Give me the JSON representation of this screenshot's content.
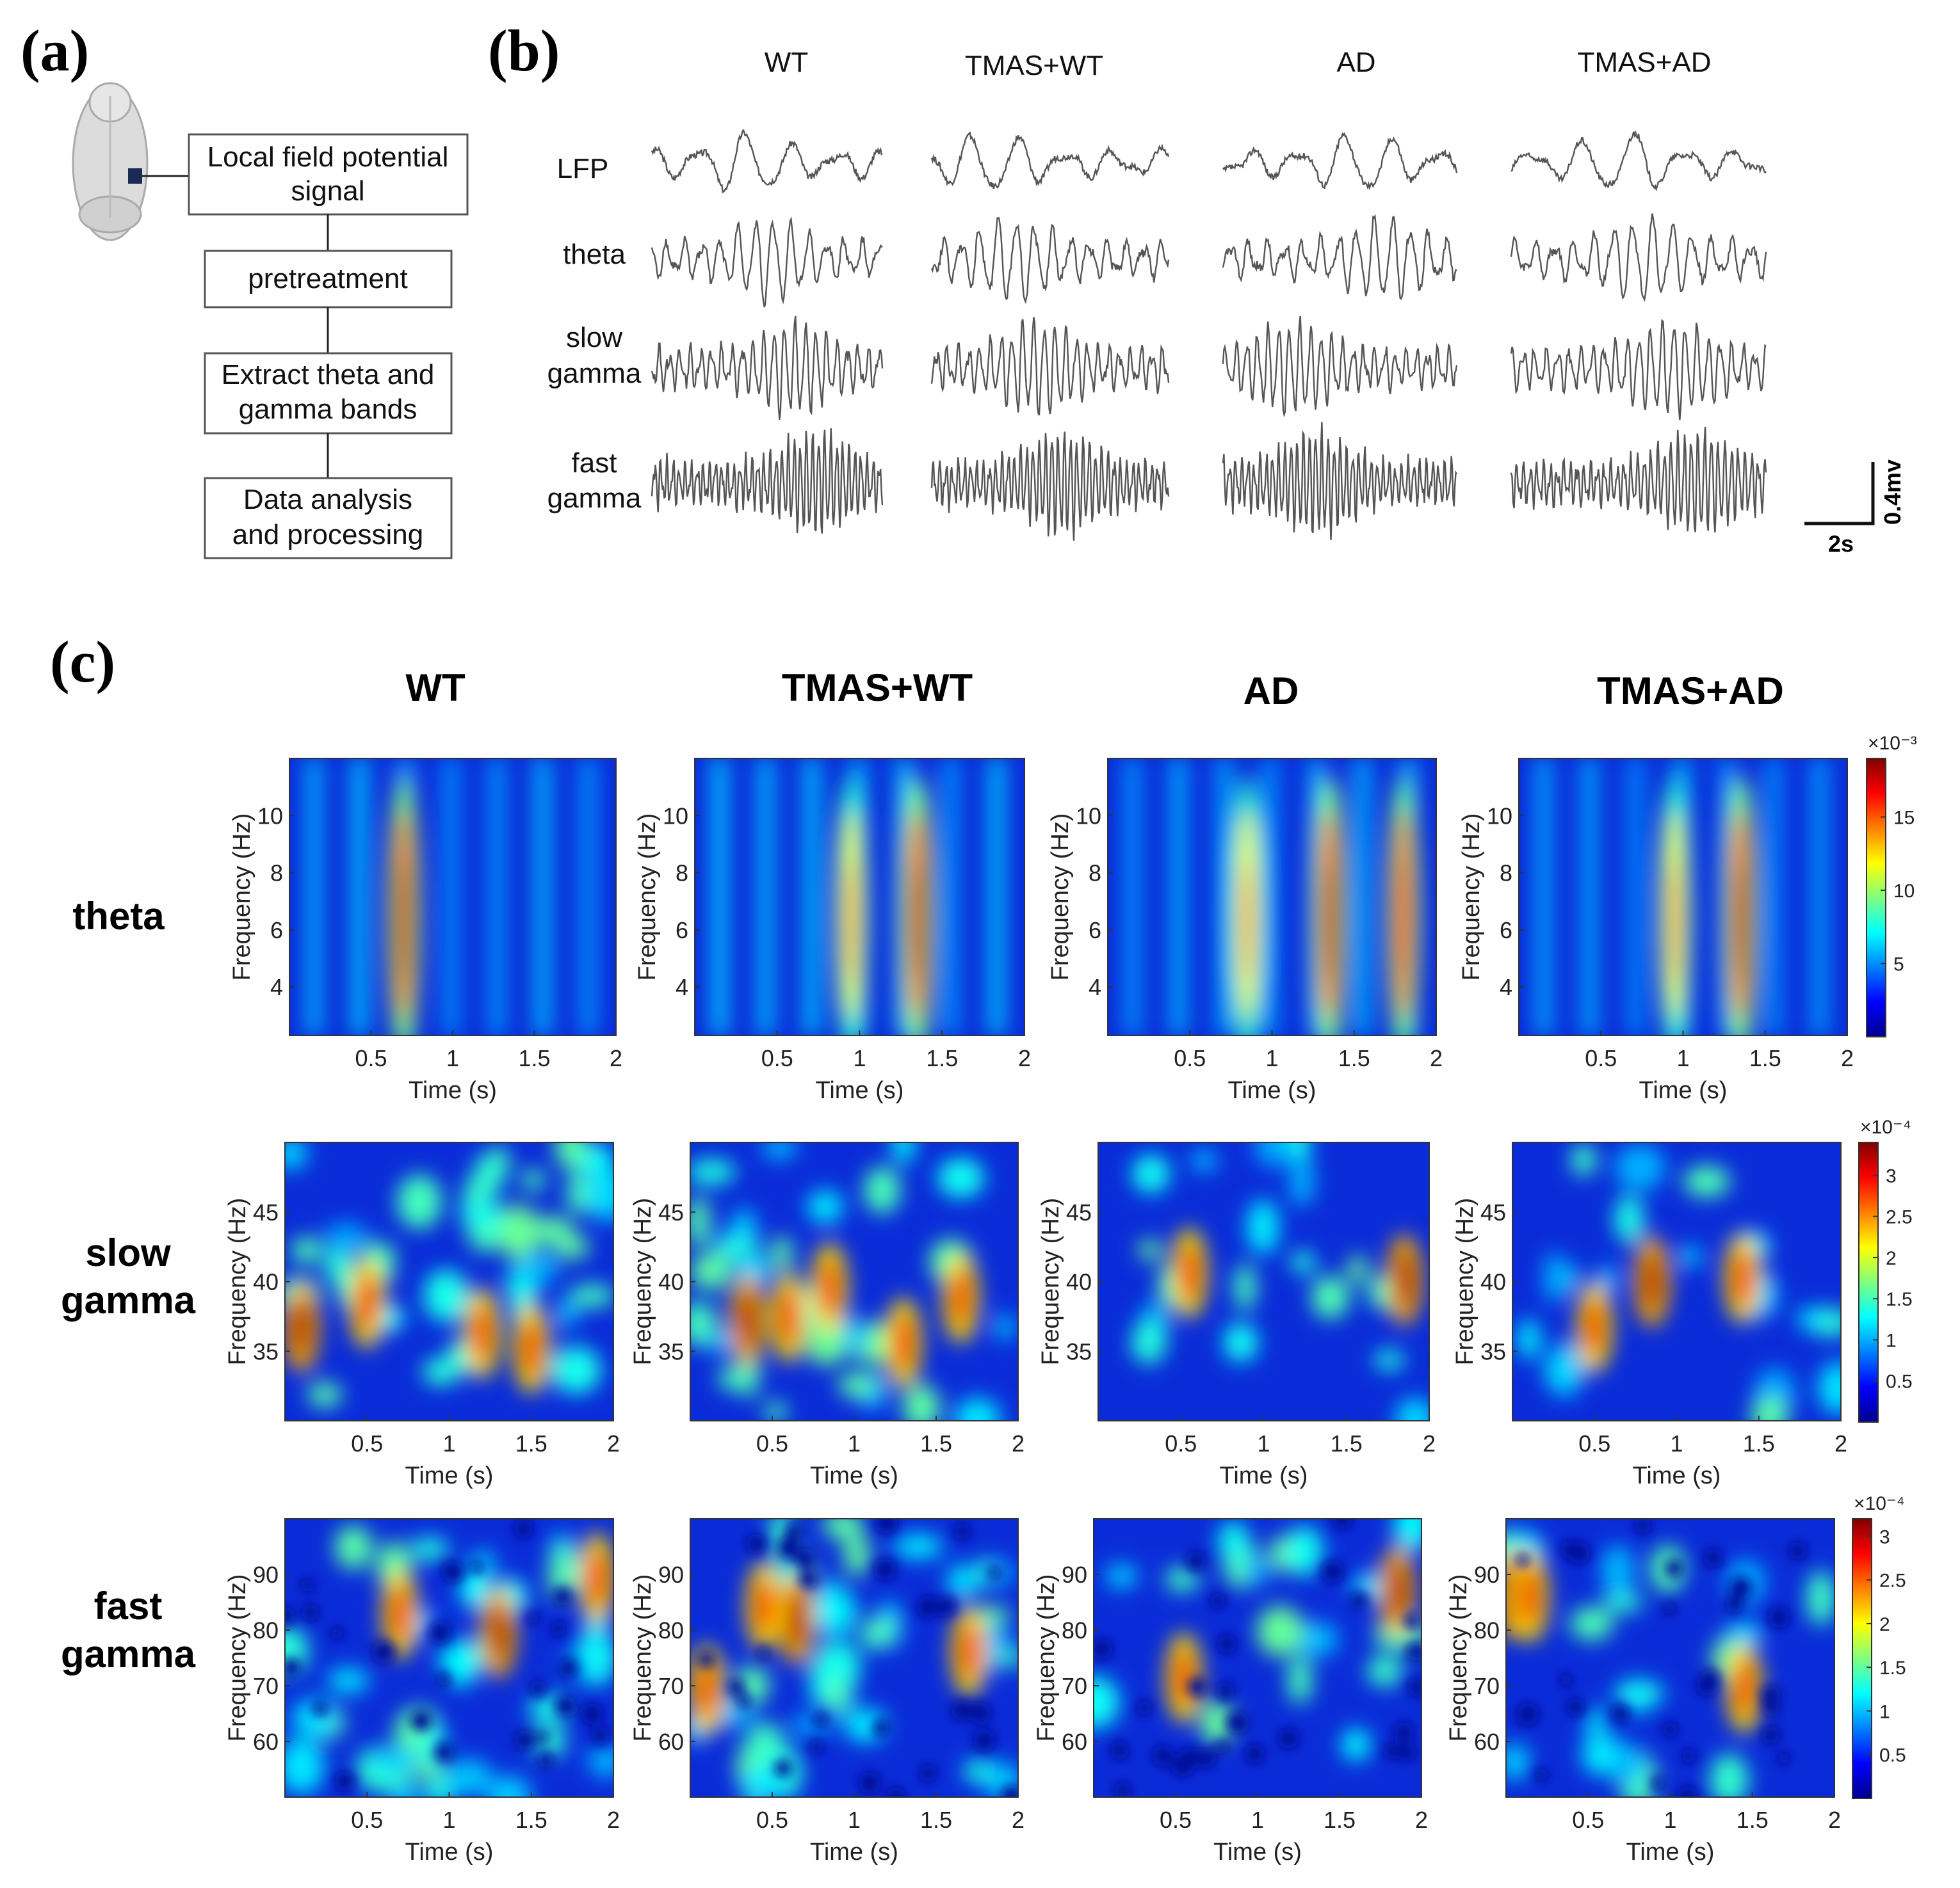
{
  "panel_labels": {
    "a": "(a)",
    "b": "(b)",
    "c": "(c)"
  },
  "flow_steps": [
    "Local field potential",
    "signal",
    "pretreatment",
    "Extract theta and",
    "gamma bands",
    "Data analysis",
    "and processing"
  ],
  "icons": [
    "mouse-brain-icon"
  ],
  "trace_panel": {
    "groups": [
      "WT",
      "TMAS+WT",
      "AD",
      "TMAS+AD"
    ],
    "rows": [
      [
        "LFP"
      ],
      [
        "theta"
      ],
      [
        "slow",
        "gamma"
      ],
      [
        "fast",
        "gamma"
      ]
    ],
    "scale_bar": {
      "voltage": "0.4mv",
      "time": "2s"
    }
  },
  "chart_data": [
    {
      "type": "heatmap",
      "band": "theta",
      "xlabel": "Time (s)",
      "ylabel": "Frequency (Hz)",
      "xlim": [
        0,
        2
      ],
      "ylim": [
        2.3,
        12
      ],
      "xticks": [
        "0.5",
        "1",
        "1.5",
        "2"
      ],
      "yticks": [
        "4",
        "6",
        "8",
        "10"
      ],
      "colorbar": {
        "exponent": "×10⁻³",
        "ticks": [
          "5",
          "10",
          "15"
        ],
        "range": [
          0,
          19
        ]
      },
      "row_label": [
        "theta"
      ],
      "groups": [
        "WT",
        "TMAS+WT",
        "AD",
        "TMAS+AD"
      ],
      "peak_times_s": [
        [
          0.7
        ],
        [
          1.35,
          0.95
        ],
        [
          1.35,
          1.8,
          0.85
        ],
        [
          1.35,
          0.95
        ]
      ]
    },
    {
      "type": "heatmap",
      "band": "slow gamma",
      "xlabel": "Time (s)",
      "ylabel": "Frequency (Hz)",
      "xlim": [
        0,
        2
      ],
      "ylim": [
        30,
        50
      ],
      "xticks": [
        "0.5",
        "1",
        "1.5",
        "2"
      ],
      "yticks": [
        "35",
        "40",
        "45"
      ],
      "colorbar": {
        "exponent": "×10⁻⁴",
        "ticks": [
          "0.5",
          "1",
          "1.5",
          "2",
          "2.5",
          "3"
        ],
        "range": [
          0,
          3.4
        ]
      },
      "row_label": [
        "slow",
        "gamma"
      ],
      "groups": [
        "WT",
        "TMAS+WT",
        "AD",
        "TMAS+AD"
      ],
      "peak_times_s": [
        [
          0.1,
          0.5,
          1.2,
          1.5
        ],
        [
          0.35,
          0.6,
          0.85,
          1.3,
          1.65
        ],
        [
          1.85,
          0.55
        ],
        [
          0.85,
          1.4,
          0.5
        ]
      ]
    },
    {
      "type": "heatmap",
      "band": "fast gamma",
      "xlabel": "Time (s)",
      "ylabel": "Frequency (Hz)",
      "xlim": [
        0,
        2
      ],
      "ylim": [
        50,
        100
      ],
      "xticks": [
        "0.5",
        "1",
        "1.5",
        "2"
      ],
      "yticks": [
        "60",
        "70",
        "80",
        "90"
      ],
      "colorbar": {
        "exponent": "×10⁻⁴",
        "ticks": [
          "0.5",
          "1",
          "1.5",
          "2",
          "2.5",
          "3"
        ],
        "range": [
          0,
          3.2
        ]
      },
      "row_label": [
        "fast",
        "gamma"
      ],
      "groups": [
        "WT",
        "TMAS+WT",
        "AD",
        "TMAS+AD"
      ],
      "peak_times_s": [
        [
          1.3,
          1.9,
          0.7
        ],
        [
          0.65,
          0.45,
          0.1,
          1.7
        ],
        [
          1.85,
          0.55
        ],
        [
          0.05,
          1.45,
          0.15
        ]
      ]
    }
  ]
}
